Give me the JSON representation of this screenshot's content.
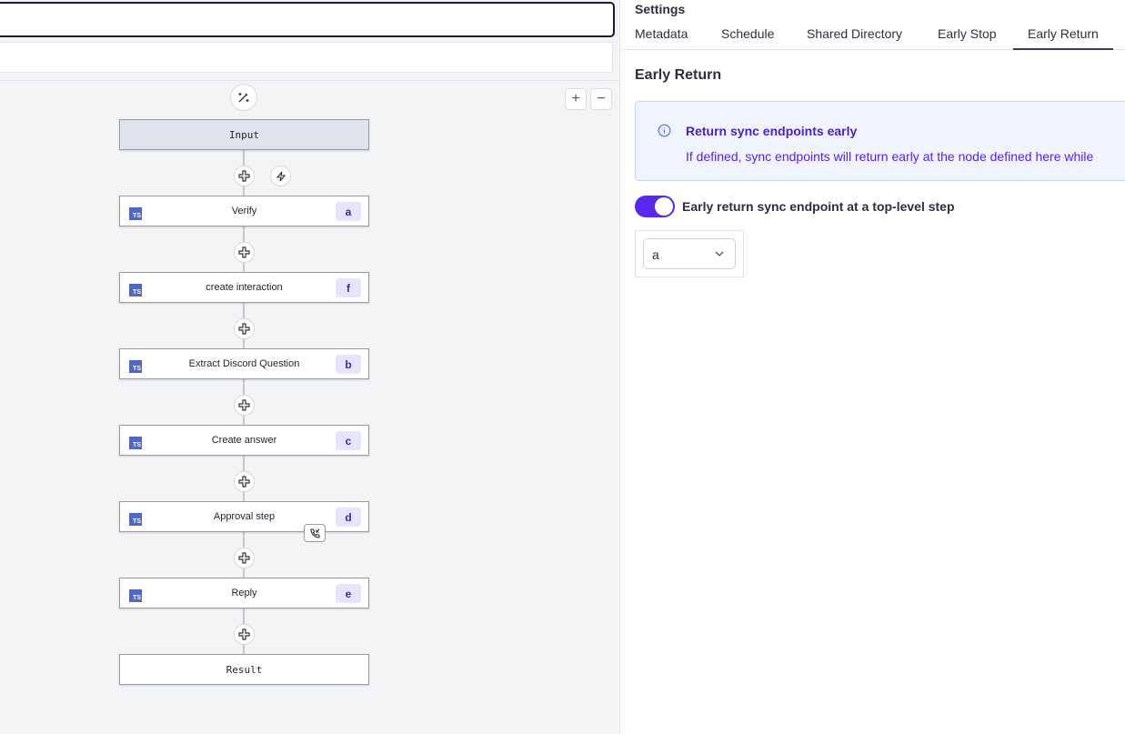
{
  "canvas": {
    "nodes": [
      {
        "label": "Input",
        "kind": "input"
      },
      {
        "label": "Verify",
        "kind": "ts",
        "id": "a"
      },
      {
        "label": "create interaction",
        "kind": "ts",
        "id": "f"
      },
      {
        "label": "Extract Discord Question",
        "kind": "ts",
        "id": "b"
      },
      {
        "label": "Create answer",
        "kind": "ts",
        "id": "c"
      },
      {
        "label": "Approval step",
        "kind": "ts",
        "id": "d"
      },
      {
        "label": "Reply",
        "kind": "ts",
        "id": "e"
      },
      {
        "label": "Result",
        "kind": "result"
      }
    ],
    "ts_icon_label": "TS",
    "zoom_in": "+",
    "zoom_out": "−"
  },
  "settings": {
    "title": "Settings",
    "tabs": [
      {
        "label": "Metadata"
      },
      {
        "label": "Schedule"
      },
      {
        "label": "Shared Directory"
      },
      {
        "label": "Early Stop"
      },
      {
        "label": "Early Return",
        "active": true
      }
    ],
    "section_title": "Early Return",
    "info": {
      "title": "Return sync endpoints early",
      "text": "If defined, sync endpoints will return early at the node defined here while"
    },
    "toggle": {
      "label": "Early return sync endpoint at a top-level step",
      "on": true
    },
    "select": {
      "value": "a"
    },
    "colors": {
      "accent": "#5b26ee",
      "info_bg": "#eff4ff"
    }
  }
}
